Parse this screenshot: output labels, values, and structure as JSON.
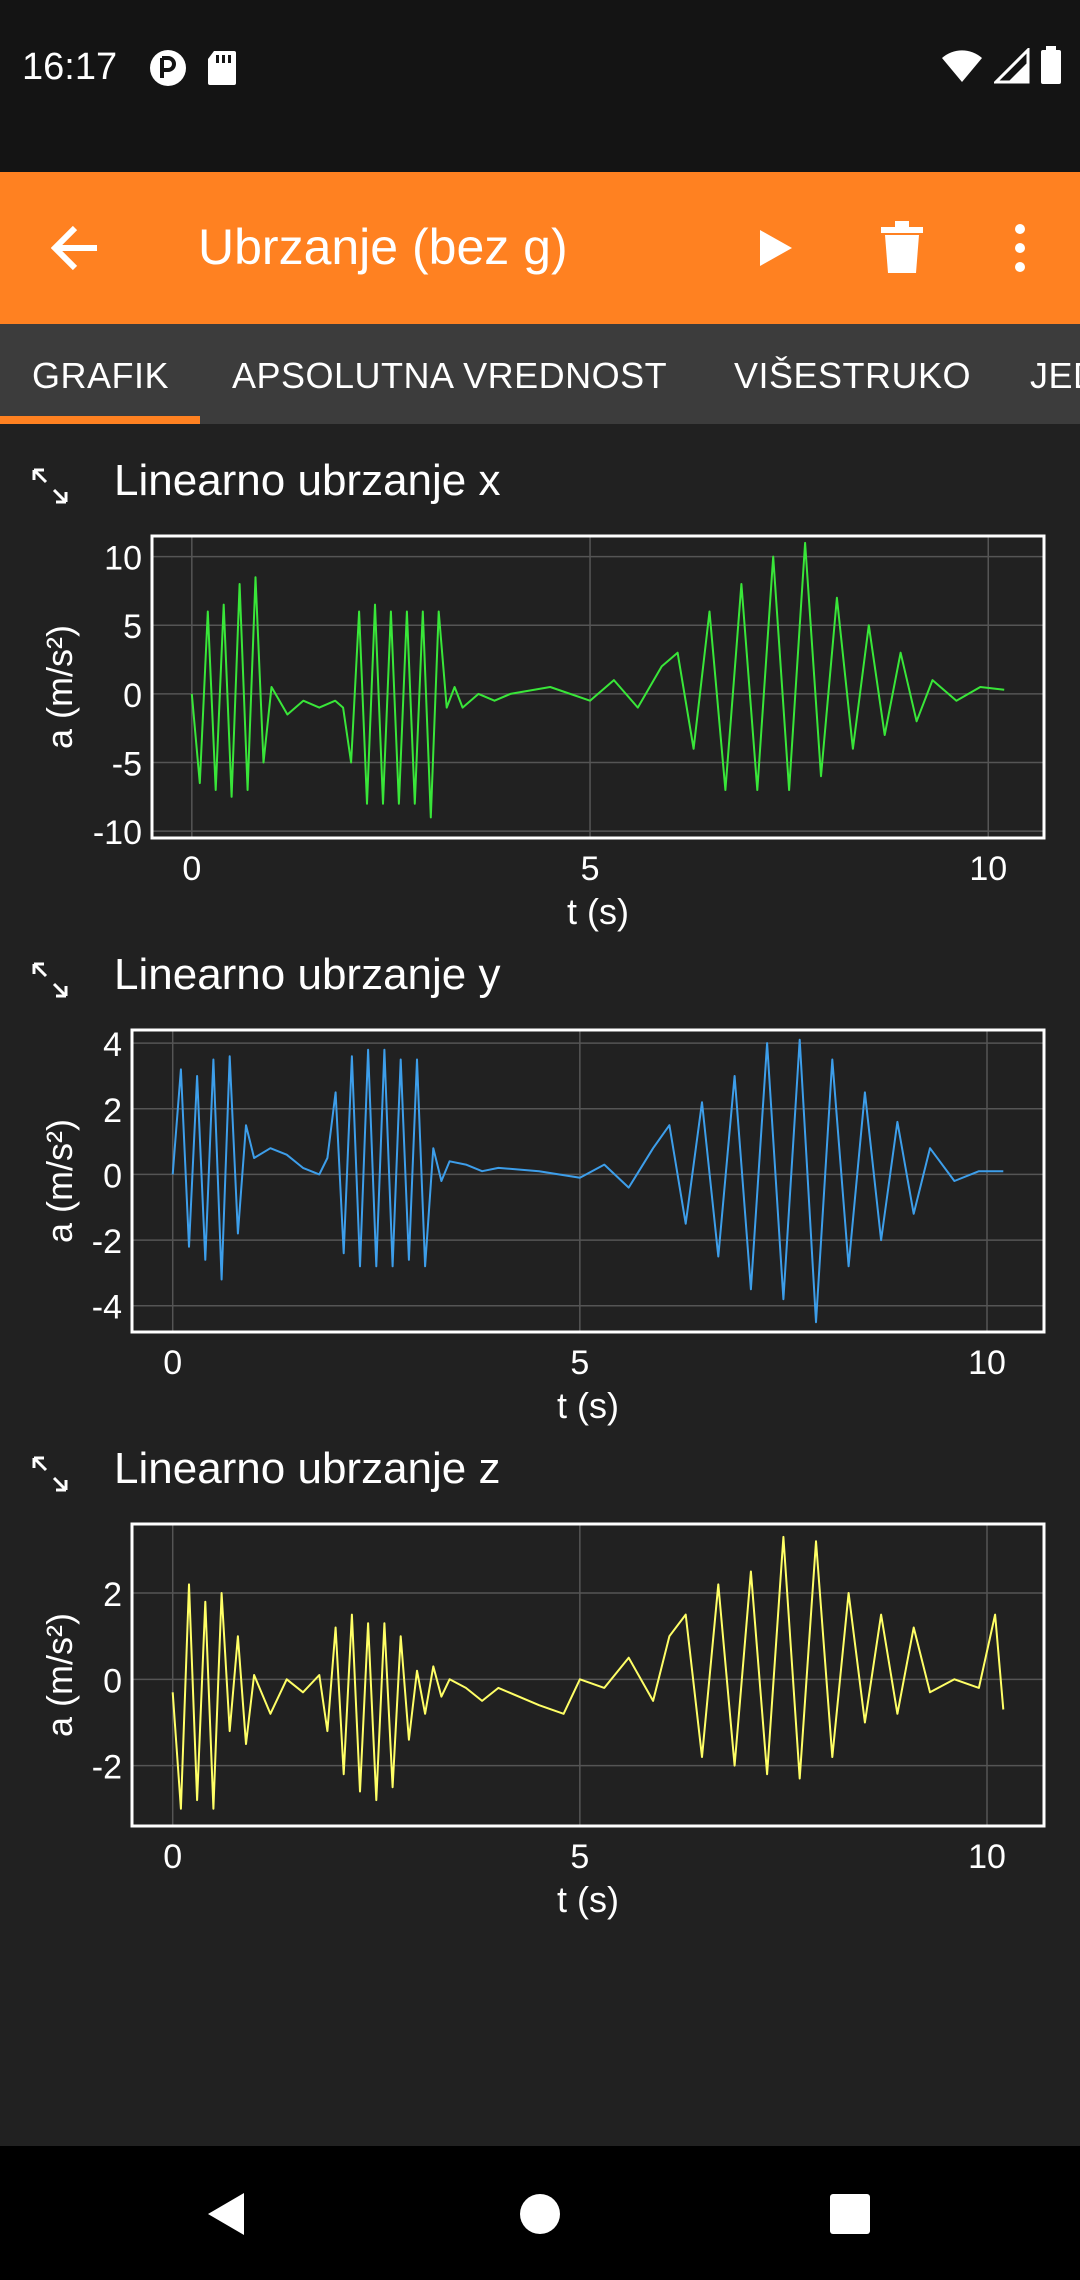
{
  "status_bar": {
    "time": "16:17"
  },
  "app_bar": {
    "title": "Ubrzanje (bez g)"
  },
  "tabs": [
    {
      "label": "GRAFIK"
    },
    {
      "label": "APSOLUTNA VREDNOST"
    },
    {
      "label": "VIŠESTRUKO"
    },
    {
      "label": "JEDNOSTAVNO"
    }
  ],
  "chart_data": [
    {
      "type": "line",
      "title": "Linearno ubrzanje x",
      "xlabel": "t (s)",
      "ylabel": "a (m/s²)",
      "color": "#39e639",
      "xlim": [
        -0.5,
        10.7
      ],
      "ylim": [
        -10.5,
        11.5
      ],
      "xticks": [
        "0",
        "5",
        "10"
      ],
      "yticks": [
        "10",
        "5",
        "0",
        "-5",
        "-10"
      ],
      "ytick_values": [
        10,
        5,
        0,
        -5,
        -10
      ],
      "grid": true,
      "x": [
        0,
        0.1,
        0.2,
        0.3,
        0.4,
        0.5,
        0.6,
        0.7,
        0.8,
        0.9,
        1.0,
        1.2,
        1.4,
        1.6,
        1.8,
        1.9,
        2.0,
        2.1,
        2.2,
        2.3,
        2.4,
        2.5,
        2.6,
        2.7,
        2.8,
        2.9,
        3.0,
        3.1,
        3.2,
        3.3,
        3.4,
        3.6,
        3.8,
        4.0,
        4.5,
        5.0,
        5.3,
        5.6,
        5.9,
        6.1,
        6.3,
        6.5,
        6.7,
        6.9,
        7.1,
        7.3,
        7.5,
        7.7,
        7.9,
        8.1,
        8.3,
        8.5,
        8.7,
        8.9,
        9.1,
        9.3,
        9.6,
        9.9,
        10.2
      ],
      "values": [
        0,
        -6.5,
        6,
        -7,
        6.5,
        -7.5,
        8,
        -7,
        8.5,
        -5,
        0.5,
        -1.5,
        -0.5,
        -1,
        -0.5,
        -1,
        -5,
        6,
        -8,
        6.5,
        -8,
        6,
        -8,
        6,
        -8,
        6,
        -9,
        6,
        -1,
        0.5,
        -1,
        0,
        -0.5,
        0,
        0.5,
        -0.5,
        1,
        -1,
        2,
        3,
        -4,
        6,
        -7,
        8,
        -7,
        10,
        -7,
        11,
        -6,
        7,
        -4,
        5,
        -3,
        3,
        -2,
        1,
        -0.5,
        0.5,
        0.3
      ]
    },
    {
      "type": "line",
      "title": "Linearno ubrzanje y",
      "xlabel": "t (s)",
      "ylabel": "a (m/s²)",
      "color": "#3d9eea",
      "xlim": [
        -0.5,
        10.7
      ],
      "ylim": [
        -4.8,
        4.4
      ],
      "xticks": [
        "0",
        "5",
        "10"
      ],
      "yticks": [
        "4",
        "2",
        "0",
        "-2",
        "-4"
      ],
      "ytick_values": [
        4,
        2,
        0,
        -2,
        -4
      ],
      "grid": true,
      "x": [
        0,
        0.1,
        0.2,
        0.3,
        0.4,
        0.5,
        0.6,
        0.7,
        0.8,
        0.9,
        1.0,
        1.2,
        1.4,
        1.6,
        1.8,
        1.9,
        2.0,
        2.1,
        2.2,
        2.3,
        2.4,
        2.5,
        2.6,
        2.7,
        2.8,
        2.9,
        3.0,
        3.1,
        3.2,
        3.3,
        3.4,
        3.6,
        3.8,
        4.0,
        4.5,
        5.0,
        5.3,
        5.6,
        5.9,
        6.1,
        6.3,
        6.5,
        6.7,
        6.9,
        7.1,
        7.3,
        7.5,
        7.7,
        7.9,
        8.1,
        8.3,
        8.5,
        8.7,
        8.9,
        9.1,
        9.3,
        9.6,
        9.9,
        10.2
      ],
      "values": [
        0,
        3.2,
        -2.2,
        3.0,
        -2.6,
        3.5,
        -3.2,
        3.6,
        -1.8,
        1.5,
        0.5,
        0.8,
        0.6,
        0.2,
        0,
        0.5,
        2.5,
        -2.4,
        3.6,
        -2.8,
        3.8,
        -2.8,
        3.8,
        -2.8,
        3.5,
        -2.6,
        3.5,
        -2.8,
        0.8,
        -0.2,
        0.4,
        0.3,
        0.1,
        0.2,
        0.1,
        -0.1,
        0.3,
        -0.4,
        0.8,
        1.5,
        -1.5,
        2.2,
        -2.5,
        3.0,
        -3.5,
        4.0,
        -3.8,
        4.1,
        -4.5,
        3.5,
        -2.8,
        2.5,
        -2,
        1.6,
        -1.2,
        0.8,
        -0.2,
        0.1,
        0.1
      ]
    },
    {
      "type": "line",
      "title": "Linearno ubrzanje z",
      "xlabel": "t (s)",
      "ylabel": "a (m/s²)",
      "color": "#ffff66",
      "xlim": [
        -0.5,
        10.7
      ],
      "ylim": [
        -3.4,
        3.6
      ],
      "xticks": [
        "0",
        "5",
        "10"
      ],
      "yticks": [
        "2",
        "0",
        "-2"
      ],
      "ytick_values": [
        2,
        0,
        -2
      ],
      "grid": true,
      "x": [
        0,
        0.1,
        0.2,
        0.3,
        0.4,
        0.5,
        0.6,
        0.7,
        0.8,
        0.9,
        1.0,
        1.2,
        1.4,
        1.6,
        1.8,
        1.9,
        2.0,
        2.1,
        2.2,
        2.3,
        2.4,
        2.5,
        2.6,
        2.7,
        2.8,
        2.9,
        3.0,
        3.1,
        3.2,
        3.3,
        3.4,
        3.6,
        3.8,
        4.0,
        4.5,
        4.8,
        5.0,
        5.3,
        5.6,
        5.9,
        6.1,
        6.3,
        6.5,
        6.7,
        6.9,
        7.1,
        7.3,
        7.5,
        7.7,
        7.9,
        8.1,
        8.3,
        8.5,
        8.7,
        8.9,
        9.1,
        9.3,
        9.6,
        9.9,
        10.1,
        10.2
      ],
      "values": [
        -0.3,
        -3.0,
        2.2,
        -2.8,
        1.8,
        -3.0,
        2.0,
        -1.2,
        1.0,
        -1.5,
        0.1,
        -0.8,
        0,
        -0.3,
        0.1,
        -1.2,
        1.2,
        -2.2,
        1.5,
        -2.6,
        1.3,
        -2.8,
        1.3,
        -2.5,
        1.0,
        -1.4,
        0.2,
        -0.8,
        0.3,
        -0.4,
        0,
        -0.2,
        -0.5,
        -0.2,
        -0.6,
        -0.8,
        0,
        -0.2,
        0.5,
        -0.5,
        1.0,
        1.5,
        -1.8,
        2.2,
        -2.0,
        2.5,
        -2.2,
        3.3,
        -2.3,
        3.2,
        -1.8,
        2.0,
        -1.0,
        1.5,
        -0.8,
        1.2,
        -0.3,
        0,
        -0.2,
        1.5,
        -0.7
      ]
    }
  ]
}
